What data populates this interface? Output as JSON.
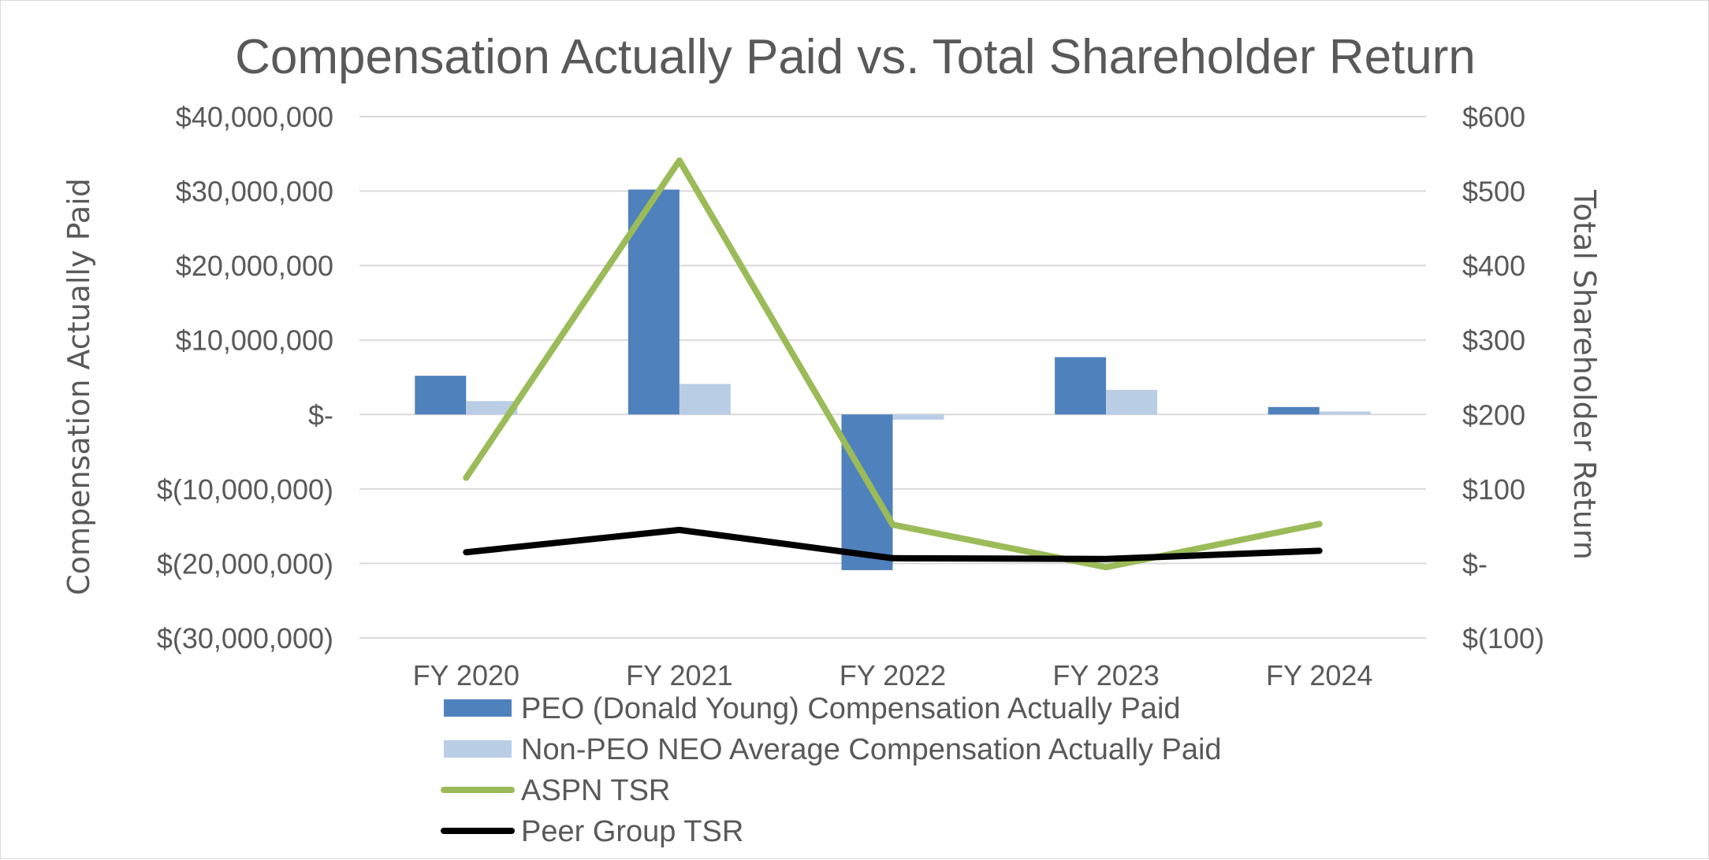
{
  "chart_data": {
    "type": "bar",
    "title": "Compensation Actually Paid vs. Total Shareholder Return",
    "categories": [
      "FY 2020",
      "FY 2021",
      "FY 2022",
      "FY 2023",
      "FY 2024"
    ],
    "ylabel": "Compensation Actually Paid",
    "y2label": "Total Shareholder Return",
    "ylim": [
      -30000000,
      40000000
    ],
    "y2lim": [
      -100,
      600
    ],
    "yticks": [
      40000000,
      30000000,
      20000000,
      10000000,
      0,
      -10000000,
      -20000000,
      -30000000
    ],
    "ytick_labels": [
      "$40,000,000",
      "$30,000,000",
      "$20,000,000",
      "$10,000,000",
      "$-",
      "$(10,000,000)",
      "$(20,000,000)",
      "$(30,000,000)"
    ],
    "y2ticks": [
      600,
      500,
      400,
      300,
      200,
      100,
      0,
      -100
    ],
    "y2tick_labels": [
      "$600",
      "$500",
      "$400",
      "$300",
      "$200",
      "$100",
      "$-",
      "$(100)"
    ],
    "grid": true,
    "legend_position": "bottom",
    "series": [
      {
        "name": "PEO (Donald Young) Compensation Actually Paid",
        "kind": "bar",
        "axis": "left",
        "color": "#4f81bd",
        "values": [
          5200000,
          30200000,
          -20900000,
          7700000,
          1000000
        ]
      },
      {
        "name": "Non-PEO NEO Average Compensation Actually Paid",
        "kind": "bar",
        "axis": "left",
        "color": "#b9cde5",
        "values": [
          1800000,
          4100000,
          -700000,
          3300000,
          400000
        ]
      },
      {
        "name": "ASPN TSR",
        "kind": "line",
        "axis": "right",
        "color": "#9bbb59",
        "values": [
          115,
          541,
          52,
          -5,
          53
        ]
      },
      {
        "name": "Peer Group TSR",
        "kind": "line",
        "axis": "right",
        "color": "#000000",
        "values": [
          15,
          45,
          7,
          6,
          17
        ]
      }
    ]
  }
}
